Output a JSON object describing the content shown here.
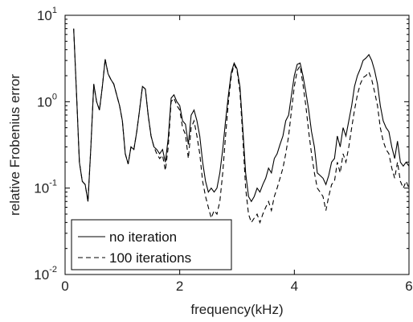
{
  "chart_data": {
    "type": "line",
    "xlabel": "frequency(kHz)",
    "ylabel": "relative Frobenius error",
    "xlim": [
      0,
      6
    ],
    "ylim": [
      0.01,
      10
    ],
    "y_scale": "log",
    "grid": false,
    "legend_position": "bottom-left",
    "x_ticks": [
      "0",
      "2",
      "4",
      "6"
    ],
    "y_ticks": [
      {
        "value": 0.01,
        "base": "10",
        "exp": "-2"
      },
      {
        "value": 0.1,
        "base": "10",
        "exp": "-1"
      },
      {
        "value": 1,
        "base": "10",
        "exp": "0"
      },
      {
        "value": 10,
        "base": "10",
        "exp": "1"
      }
    ],
    "series": [
      {
        "name": "no iteration",
        "style": "solid",
        "points": [
          [
            0.15,
            7
          ],
          [
            0.2,
            1.2
          ],
          [
            0.25,
            0.2
          ],
          [
            0.3,
            0.12
          ],
          [
            0.35,
            0.11
          ],
          [
            0.4,
            0.07
          ],
          [
            0.45,
            0.3
          ],
          [
            0.5,
            1.6
          ],
          [
            0.55,
            1.0
          ],
          [
            0.6,
            0.8
          ],
          [
            0.65,
            1.5
          ],
          [
            0.7,
            3.1
          ],
          [
            0.75,
            2.1
          ],
          [
            0.8,
            1.8
          ],
          [
            0.85,
            1.6
          ],
          [
            0.9,
            1.2
          ],
          [
            0.95,
            0.9
          ],
          [
            1.0,
            0.6
          ],
          [
            1.05,
            0.25
          ],
          [
            1.1,
            0.19
          ],
          [
            1.15,
            0.3
          ],
          [
            1.2,
            0.28
          ],
          [
            1.25,
            0.45
          ],
          [
            1.3,
            0.8
          ],
          [
            1.35,
            1.5
          ],
          [
            1.4,
            1.4
          ],
          [
            1.45,
            0.7
          ],
          [
            1.5,
            0.4
          ],
          [
            1.55,
            0.3
          ],
          [
            1.6,
            0.28
          ],
          [
            1.65,
            0.25
          ],
          [
            1.7,
            0.28
          ],
          [
            1.75,
            0.2
          ],
          [
            1.8,
            0.38
          ],
          [
            1.85,
            1.1
          ],
          [
            1.9,
            1.2
          ],
          [
            1.95,
            1.0
          ],
          [
            2.0,
            0.9
          ],
          [
            2.05,
            0.6
          ],
          [
            2.1,
            0.55
          ],
          [
            2.15,
            0.32
          ],
          [
            2.2,
            0.7
          ],
          [
            2.25,
            0.8
          ],
          [
            2.3,
            0.6
          ],
          [
            2.35,
            0.4
          ],
          [
            2.4,
            0.2
          ],
          [
            2.45,
            0.12
          ],
          [
            2.5,
            0.09
          ],
          [
            2.55,
            0.1
          ],
          [
            2.6,
            0.09
          ],
          [
            2.65,
            0.1
          ],
          [
            2.7,
            0.15
          ],
          [
            2.75,
            0.28
          ],
          [
            2.8,
            0.6
          ],
          [
            2.85,
            1.2
          ],
          [
            2.9,
            2.2
          ],
          [
            2.95,
            2.8
          ],
          [
            3.0,
            2.4
          ],
          [
            3.05,
            1.5
          ],
          [
            3.1,
            0.5
          ],
          [
            3.15,
            0.15
          ],
          [
            3.2,
            0.08
          ],
          [
            3.25,
            0.07
          ],
          [
            3.3,
            0.08
          ],
          [
            3.35,
            0.1
          ],
          [
            3.4,
            0.09
          ],
          [
            3.45,
            0.11
          ],
          [
            3.5,
            0.13
          ],
          [
            3.55,
            0.17
          ],
          [
            3.6,
            0.15
          ],
          [
            3.65,
            0.22
          ],
          [
            3.7,
            0.25
          ],
          [
            3.75,
            0.32
          ],
          [
            3.8,
            0.4
          ],
          [
            3.85,
            0.6
          ],
          [
            3.9,
            0.7
          ],
          [
            3.95,
            1.2
          ],
          [
            4.0,
            2.0
          ],
          [
            4.05,
            2.7
          ],
          [
            4.1,
            2.8
          ],
          [
            4.15,
            2.0
          ],
          [
            4.2,
            1.3
          ],
          [
            4.25,
            0.8
          ],
          [
            4.3,
            0.45
          ],
          [
            4.35,
            0.3
          ],
          [
            4.4,
            0.15
          ],
          [
            4.45,
            0.14
          ],
          [
            4.5,
            0.13
          ],
          [
            4.55,
            0.11
          ],
          [
            4.6,
            0.14
          ],
          [
            4.65,
            0.2
          ],
          [
            4.7,
            0.22
          ],
          [
            4.75,
            0.4
          ],
          [
            4.8,
            0.3
          ],
          [
            4.85,
            0.5
          ],
          [
            4.9,
            0.4
          ],
          [
            4.95,
            0.6
          ],
          [
            5.0,
            0.9
          ],
          [
            5.05,
            1.5
          ],
          [
            5.1,
            2.0
          ],
          [
            5.15,
            2.4
          ],
          [
            5.2,
            3.0
          ],
          [
            5.25,
            3.2
          ],
          [
            5.3,
            3.5
          ],
          [
            5.35,
            3.0
          ],
          [
            5.4,
            2.3
          ],
          [
            5.45,
            1.6
          ],
          [
            5.5,
            0.9
          ],
          [
            5.55,
            0.6
          ],
          [
            5.6,
            0.5
          ],
          [
            5.65,
            0.45
          ],
          [
            5.7,
            0.3
          ],
          [
            5.75,
            0.22
          ],
          [
            5.8,
            0.35
          ],
          [
            5.85,
            0.2
          ],
          [
            5.9,
            0.18
          ],
          [
            5.95,
            0.2
          ],
          [
            6.0,
            0.18
          ]
        ]
      },
      {
        "name": "100 iterations",
        "style": "dashed",
        "points": [
          [
            0.15,
            7
          ],
          [
            0.2,
            1.2
          ],
          [
            0.25,
            0.2
          ],
          [
            0.3,
            0.12
          ],
          [
            0.35,
            0.11
          ],
          [
            0.4,
            0.07
          ],
          [
            0.45,
            0.3
          ],
          [
            0.5,
            1.6
          ],
          [
            0.55,
            1.0
          ],
          [
            0.6,
            0.8
          ],
          [
            0.65,
            1.5
          ],
          [
            0.7,
            3.1
          ],
          [
            0.75,
            2.1
          ],
          [
            0.8,
            1.8
          ],
          [
            0.85,
            1.6
          ],
          [
            0.9,
            1.2
          ],
          [
            0.95,
            0.9
          ],
          [
            1.0,
            0.6
          ],
          [
            1.05,
            0.25
          ],
          [
            1.1,
            0.19
          ],
          [
            1.15,
            0.3
          ],
          [
            1.2,
            0.28
          ],
          [
            1.25,
            0.45
          ],
          [
            1.3,
            0.8
          ],
          [
            1.35,
            1.5
          ],
          [
            1.4,
            1.4
          ],
          [
            1.45,
            0.7
          ],
          [
            1.5,
            0.4
          ],
          [
            1.55,
            0.3
          ],
          [
            1.6,
            0.25
          ],
          [
            1.65,
            0.22
          ],
          [
            1.7,
            0.24
          ],
          [
            1.75,
            0.16
          ],
          [
            1.8,
            0.3
          ],
          [
            1.85,
            1.0
          ],
          [
            1.9,
            1.1
          ],
          [
            1.95,
            0.9
          ],
          [
            2.0,
            0.8
          ],
          [
            2.05,
            0.5
          ],
          [
            2.1,
            0.42
          ],
          [
            2.15,
            0.22
          ],
          [
            2.2,
            0.5
          ],
          [
            2.25,
            0.6
          ],
          [
            2.3,
            0.4
          ],
          [
            2.35,
            0.25
          ],
          [
            2.4,
            0.12
          ],
          [
            2.45,
            0.08
          ],
          [
            2.5,
            0.06
          ],
          [
            2.55,
            0.045
          ],
          [
            2.6,
            0.055
          ],
          [
            2.65,
            0.05
          ],
          [
            2.7,
            0.07
          ],
          [
            2.75,
            0.15
          ],
          [
            2.8,
            0.4
          ],
          [
            2.85,
            1.0
          ],
          [
            2.9,
            2.0
          ],
          [
            2.95,
            2.7
          ],
          [
            3.0,
            2.3
          ],
          [
            3.05,
            1.3
          ],
          [
            3.1,
            0.4
          ],
          [
            3.15,
            0.1
          ],
          [
            3.2,
            0.05
          ],
          [
            3.25,
            0.04
          ],
          [
            3.3,
            0.045
          ],
          [
            3.35,
            0.05
          ],
          [
            3.4,
            0.04
          ],
          [
            3.45,
            0.05
          ],
          [
            3.5,
            0.06
          ],
          [
            3.55,
            0.07
          ],
          [
            3.6,
            0.055
          ],
          [
            3.65,
            0.08
          ],
          [
            3.7,
            0.1
          ],
          [
            3.75,
            0.13
          ],
          [
            3.8,
            0.17
          ],
          [
            3.85,
            0.25
          ],
          [
            3.9,
            0.4
          ],
          [
            3.95,
            0.8
          ],
          [
            4.0,
            1.5
          ],
          [
            4.05,
            2.3
          ],
          [
            4.1,
            2.6
          ],
          [
            4.15,
            1.6
          ],
          [
            4.2,
            0.9
          ],
          [
            4.25,
            0.45
          ],
          [
            4.3,
            0.25
          ],
          [
            4.35,
            0.15
          ],
          [
            4.4,
            0.1
          ],
          [
            4.45,
            0.09
          ],
          [
            4.5,
            0.08
          ],
          [
            4.55,
            0.055
          ],
          [
            4.6,
            0.08
          ],
          [
            4.65,
            0.11
          ],
          [
            4.7,
            0.12
          ],
          [
            4.75,
            0.2
          ],
          [
            4.8,
            0.15
          ],
          [
            4.85,
            0.25
          ],
          [
            4.9,
            0.2
          ],
          [
            4.95,
            0.3
          ],
          [
            5.0,
            0.5
          ],
          [
            5.05,
            0.8
          ],
          [
            5.1,
            1.2
          ],
          [
            5.15,
            1.6
          ],
          [
            5.2,
            1.9
          ],
          [
            5.25,
            2.0
          ],
          [
            5.3,
            2.2
          ],
          [
            5.35,
            1.8
          ],
          [
            5.4,
            1.3
          ],
          [
            5.45,
            0.9
          ],
          [
            5.5,
            0.5
          ],
          [
            5.55,
            0.35
          ],
          [
            5.6,
            0.28
          ],
          [
            5.65,
            0.25
          ],
          [
            5.7,
            0.17
          ],
          [
            5.75,
            0.13
          ],
          [
            5.8,
            0.2
          ],
          [
            5.85,
            0.12
          ],
          [
            5.9,
            0.1
          ],
          [
            5.95,
            0.12
          ],
          [
            6.0,
            0.1
          ]
        ]
      }
    ]
  }
}
